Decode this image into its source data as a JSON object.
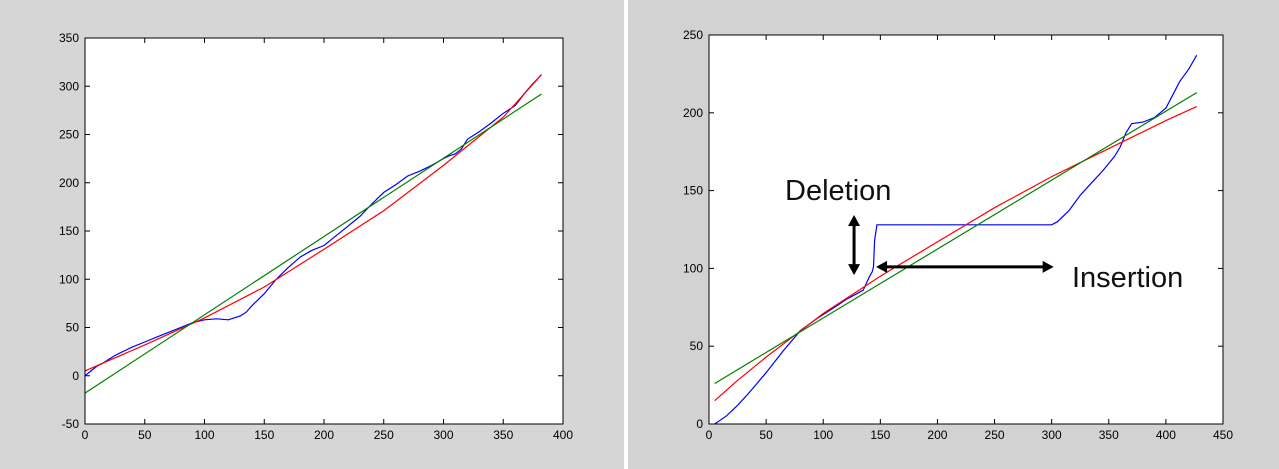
{
  "chart_data": [
    {
      "type": "line",
      "xlim": [
        0,
        400
      ],
      "ylim": [
        -50,
        350
      ],
      "xticks": [
        0,
        50,
        100,
        150,
        200,
        250,
        300,
        350,
        400
      ],
      "yticks": [
        -50,
        0,
        50,
        100,
        150,
        200,
        250,
        300,
        350
      ],
      "grid": false,
      "series": [
        {
          "color": "#0000ff",
          "x": [
            0,
            5,
            10,
            15,
            20,
            25,
            30,
            40,
            50,
            60,
            70,
            80,
            90,
            100,
            110,
            120,
            130,
            135,
            140,
            150,
            160,
            170,
            180,
            190,
            200,
            210,
            220,
            230,
            240,
            250,
            260,
            270,
            280,
            290,
            300,
            305,
            310,
            315,
            320,
            330,
            340,
            350,
            360,
            365,
            370,
            375,
            382
          ],
          "y": [
            0,
            5,
            10,
            13,
            17,
            21,
            24,
            30,
            35,
            40,
            45,
            50,
            55,
            58,
            59,
            58,
            62,
            66,
            73,
            85,
            100,
            112,
            123,
            130,
            135,
            145,
            155,
            165,
            178,
            190,
            198,
            207,
            212,
            218,
            225,
            228,
            230,
            235,
            245,
            253,
            262,
            272,
            280,
            288,
            296,
            303,
            312
          ]
        },
        {
          "color": "#ff0000",
          "x": [
            0,
            50,
            100,
            150,
            200,
            250,
            300,
            350,
            382
          ],
          "y": [
            5,
            32,
            60,
            92,
            131,
            171,
            218,
            268,
            312
          ]
        },
        {
          "color": "#008000",
          "x": [
            0,
            382
          ],
          "y": [
            -18,
            292
          ]
        }
      ]
    },
    {
      "type": "line",
      "xlim": [
        0,
        450
      ],
      "ylim": [
        0,
        250
      ],
      "xticks": [
        0,
        50,
        100,
        150,
        200,
        250,
        300,
        350,
        400,
        450
      ],
      "yticks": [
        0,
        50,
        100,
        150,
        200,
        250
      ],
      "grid": false,
      "annotations": [
        {
          "text": "Deletion"
        },
        {
          "text": "Insertion"
        }
      ],
      "series": [
        {
          "color": "#0000ff",
          "x": [
            5,
            15,
            25,
            35,
            50,
            65,
            80,
            95,
            110,
            120,
            130,
            135,
            140,
            143,
            144,
            145,
            147,
            160,
            200,
            250,
            300,
            305,
            315,
            325,
            335,
            345,
            355,
            360,
            365,
            370,
            380,
            390,
            395,
            400,
            405,
            412,
            420,
            427
          ],
          "y": [
            0,
            5,
            12,
            20,
            33,
            47,
            60,
            68,
            75,
            80,
            84,
            86,
            94,
            98,
            101,
            118,
            128,
            128,
            128,
            128,
            128,
            130,
            137,
            147,
            155,
            163,
            172,
            178,
            187,
            193,
            194,
            197,
            200,
            203,
            210,
            220,
            228,
            237
          ]
        },
        {
          "color": "#ff0000",
          "x": [
            5,
            25,
            50,
            75,
            100,
            125,
            150,
            200,
            250,
            300,
            350,
            400,
            427
          ],
          "y": [
            15,
            28,
            43,
            57,
            71,
            83,
            95,
            117,
            139,
            159,
            177,
            195,
            204
          ]
        },
        {
          "color": "#008000",
          "x": [
            5,
            427
          ],
          "y": [
            26,
            213
          ]
        }
      ]
    }
  ]
}
